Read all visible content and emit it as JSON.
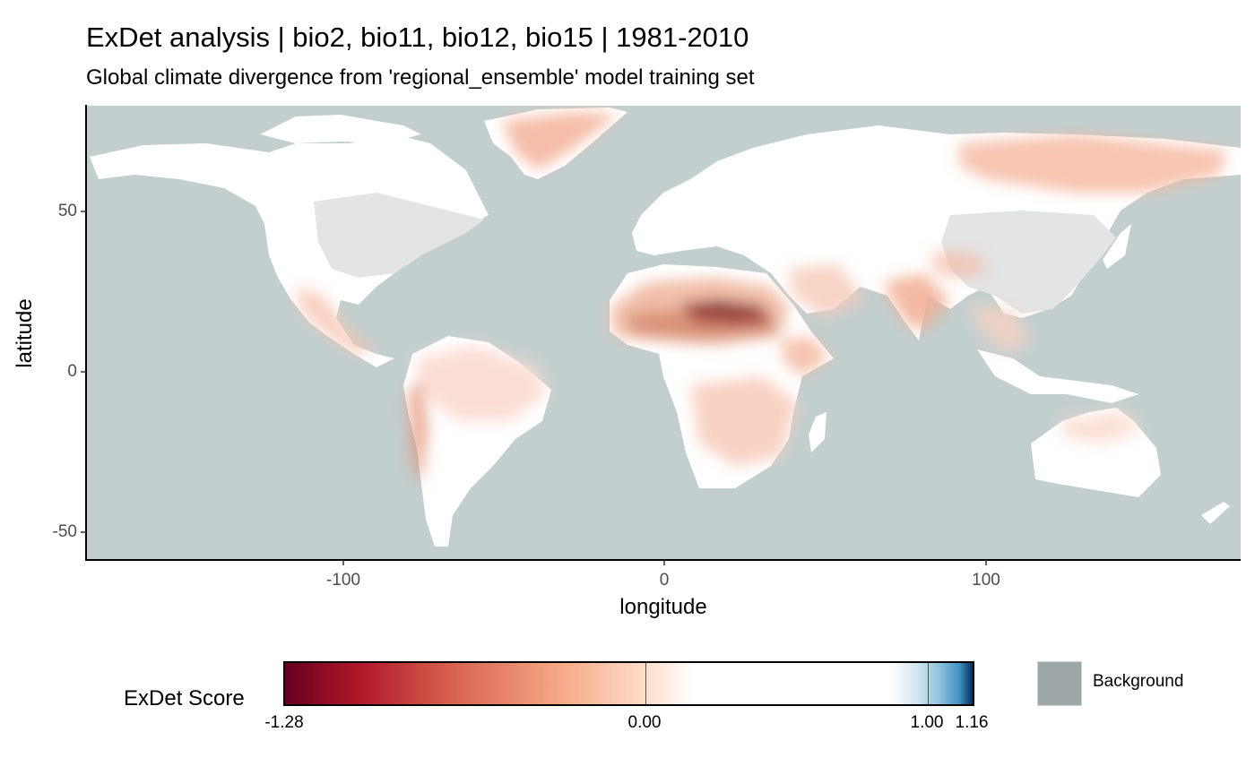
{
  "title": "ExDet analysis | bio2, bio11, bio12, bio15 | 1981-2010",
  "subtitle": "Global climate divergence from 'regional_ensemble' model training set",
  "axes": {
    "xlabel": "longitude",
    "ylabel": "latitude",
    "xticks": [
      "-100",
      "0",
      "100"
    ],
    "yticks": [
      "50",
      "0",
      "-50"
    ],
    "xlim": [
      -180,
      180
    ],
    "ylim": [
      -58,
      83
    ]
  },
  "legend": {
    "title": "ExDet Score",
    "ticks": [
      "-1.28",
      "0.00",
      "1.00",
      "1.16"
    ],
    "range": [
      -1.28,
      1.16
    ],
    "background_label": "Background"
  },
  "colors": {
    "ocean": "#c3cfcf",
    "land_neutral": "#ffffff",
    "training_region": "#e3e4e4",
    "negative_strong": "#67001f",
    "negative_mid": "#f4a582",
    "positive_strong": "#053061",
    "background_key": "#9ea7a8"
  },
  "chart_data": {
    "type": "heatmap",
    "title": "ExDet analysis | bio2, bio11, bio12, bio15 | 1981-2010",
    "subtitle": "Global climate divergence from 'regional_ensemble' model training set",
    "xlabel": "longitude",
    "ylabel": "latitude",
    "xlim": [
      -180,
      180
    ],
    "ylim": [
      -58,
      83
    ],
    "color_scale": {
      "min": -1.28,
      "max": 1.16,
      "breaks": [
        -1.28,
        0.0,
        1.0,
        1.16
      ]
    },
    "regions": [
      {
        "lon": [
          13,
          25
        ],
        "lat": [
          15,
          20
        ],
        "value": -1.1
      },
      {
        "lon": [
          -16,
          33
        ],
        "lat": [
          13,
          25
        ],
        "value": -0.7
      },
      {
        "lon": [
          -40,
          -20
        ],
        "lat": [
          62,
          80
        ],
        "value": -0.45
      },
      {
        "lon": [
          60,
          170
        ],
        "lat": [
          55,
          72
        ],
        "value": -0.4
      },
      {
        "lon": [
          70,
          90
        ],
        "lat": [
          10,
          30
        ],
        "value": -0.4
      },
      {
        "lon": [
          -75,
          -35
        ],
        "lat": [
          -20,
          3
        ],
        "value": -0.3
      },
      {
        "lon": [
          12,
          40
        ],
        "lat": [
          -30,
          5
        ],
        "value": -0.35
      },
      {
        "lon": [
          -100,
          -65
        ],
        "lat": [
          25,
          50
        ],
        "value": 0.5
      },
      {
        "lon": [
          100,
          125
        ],
        "lat": [
          22,
          45
        ],
        "value": 0.5
      }
    ]
  }
}
